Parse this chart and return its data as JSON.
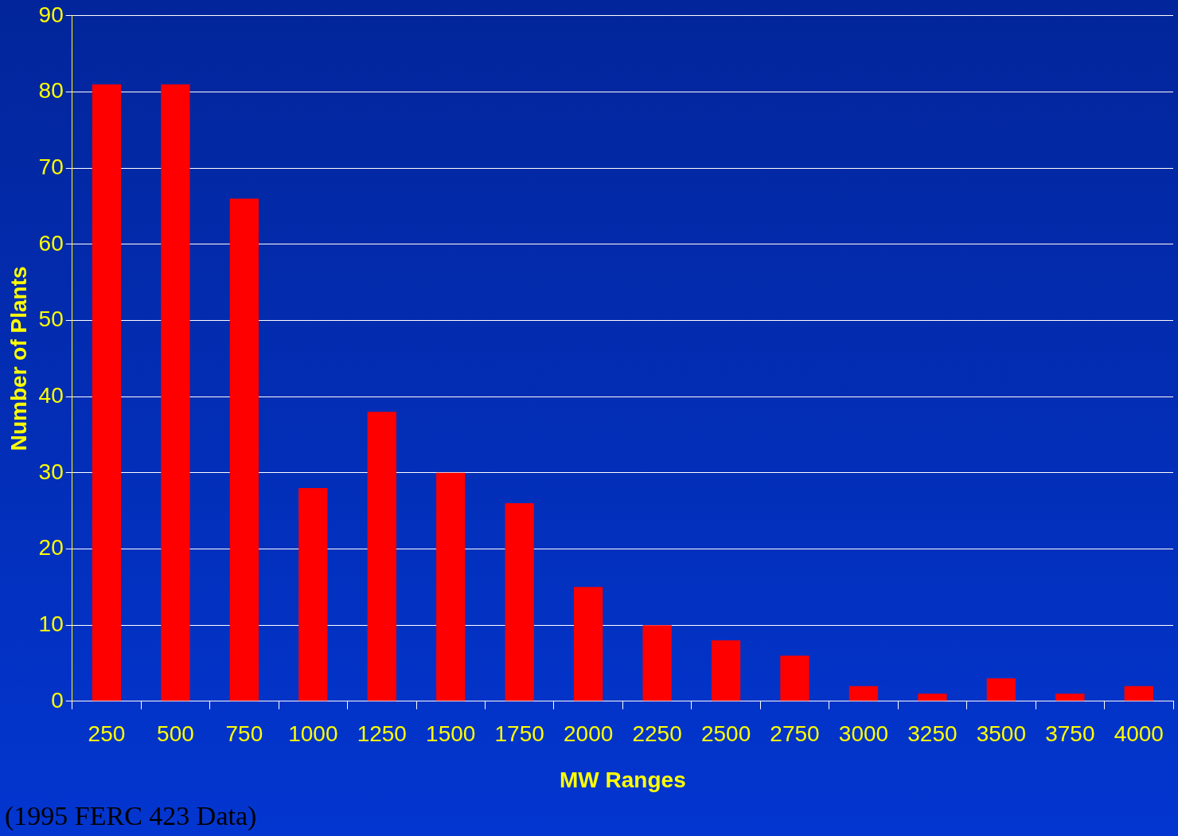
{
  "chart_data": {
    "type": "bar",
    "xlabel": "MW Ranges",
    "ylabel": "Number of Plants",
    "categories": [
      "250",
      "500",
      "750",
      "1000",
      "1250",
      "1500",
      "1750",
      "2000",
      "2250",
      "2500",
      "2750",
      "3000",
      "3250",
      "3500",
      "3750",
      "4000"
    ],
    "values": [
      81,
      81,
      66,
      28,
      38,
      30,
      26,
      15,
      10,
      8,
      6,
      2,
      1,
      3,
      1,
      2
    ],
    "color": "#ff0000",
    "ylim": [
      0,
      90
    ],
    "yticks": [
      0,
      10,
      20,
      30,
      40,
      50,
      60,
      70,
      80,
      90
    ],
    "grid": "y",
    "legend": false,
    "annotations": [
      "(1995 FERC 423 Data)"
    ]
  }
}
